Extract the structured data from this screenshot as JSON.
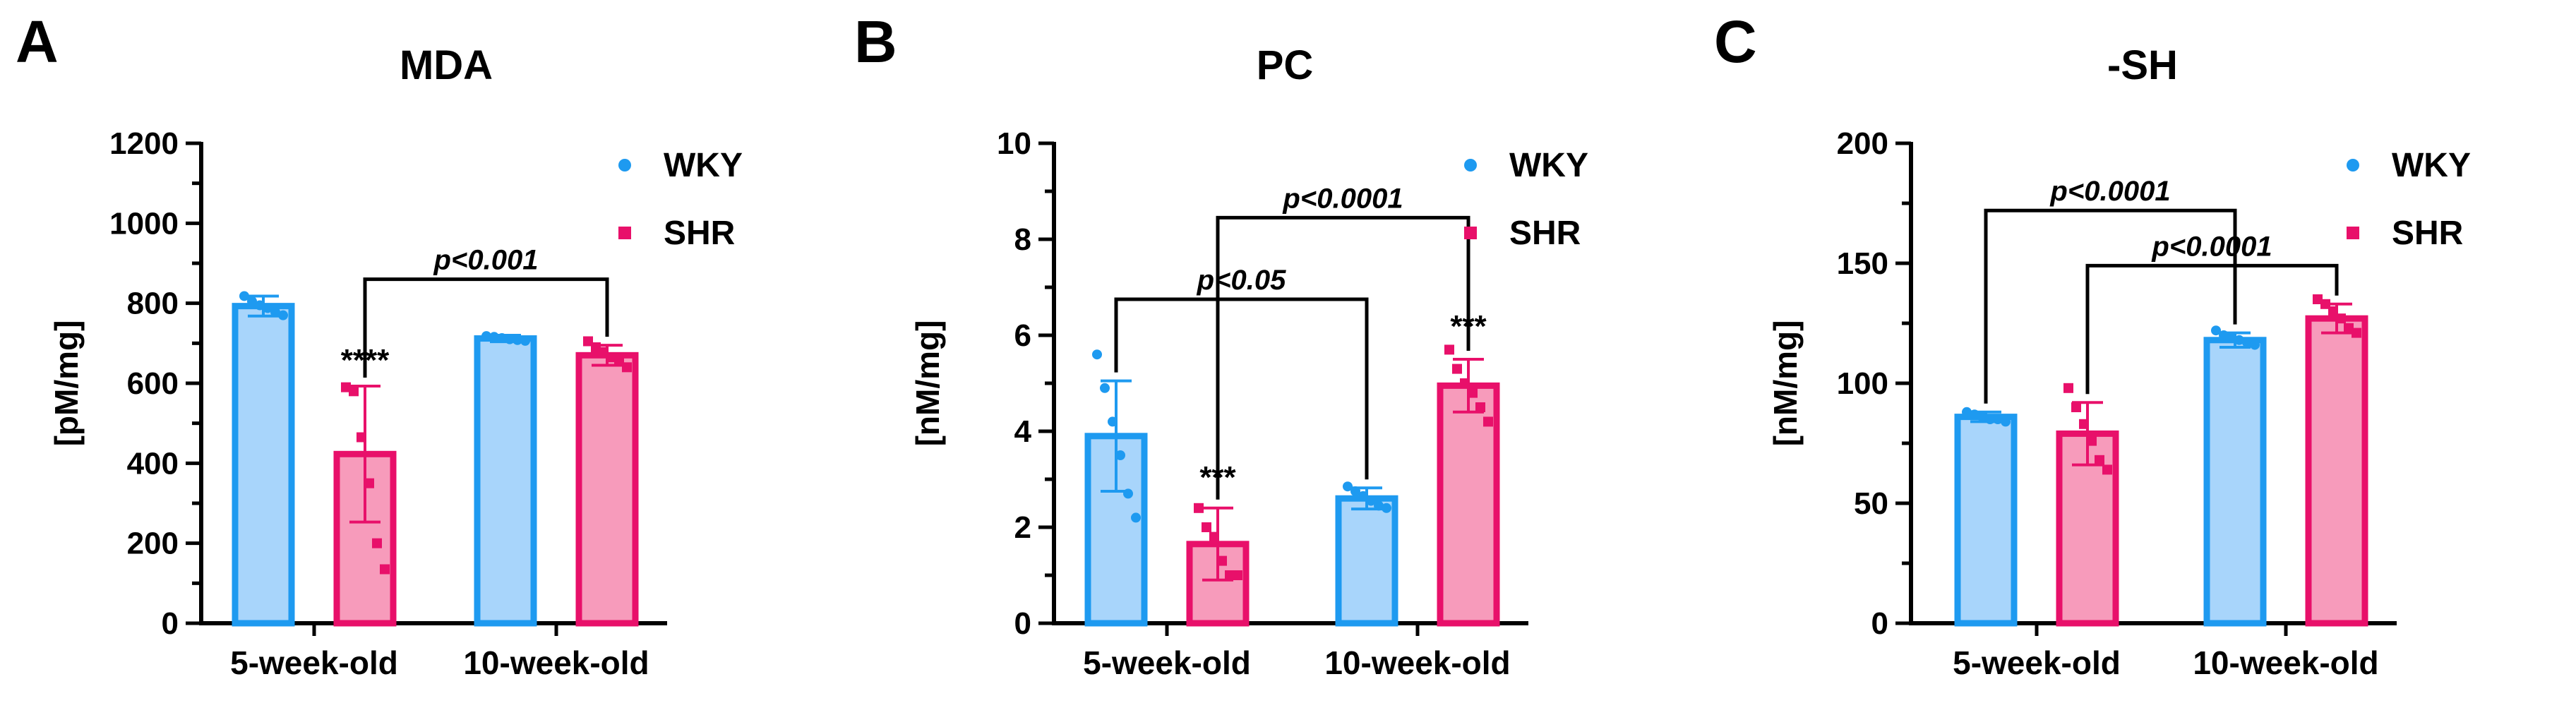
{
  "legend": [
    "WKY",
    "SHR"
  ],
  "colors": {
    "WKY": {
      "fill": "#a8d5fb",
      "stroke": "#1e9af0",
      "point": "#1e9af0"
    },
    "SHR": {
      "fill": "#f79bbb",
      "stroke": "#e8106a",
      "point": "#e8106a"
    }
  },
  "chart_data": [
    {
      "panel": "A",
      "type": "bar",
      "title": "MDA",
      "ylabel": "[pM/mg]",
      "ylim": [
        0,
        1200
      ],
      "yticks": [
        0,
        200,
        400,
        600,
        800,
        1000,
        1200
      ],
      "categories": [
        "5-week-old",
        "10-week-old"
      ],
      "legend_position": "top-right",
      "series": [
        {
          "name": "WKY",
          "values": [
            793,
            712
          ],
          "sd": [
            25,
            8
          ],
          "points": [
            [
              818,
              805,
              795,
              788,
              778,
              770
            ],
            [
              718,
              716,
              713,
              710,
              708,
              706
            ]
          ]
        },
        {
          "name": "SHR",
          "values": [
            423,
            670
          ],
          "sd": [
            170,
            25
          ],
          "points": [
            [
              590,
              580,
              465,
              350,
              200,
              135
            ],
            [
              705,
              690,
              678,
              665,
              655,
              640
            ]
          ]
        }
      ],
      "annotations": [
        {
          "text": "p<0.001",
          "from": [
            0,
            "SHR"
          ],
          "to": [
            1,
            "SHR"
          ],
          "level": 860
        }
      ],
      "stars": [
        {
          "text": "****",
          "category": 0,
          "series": "SHR",
          "y": 593
        }
      ]
    },
    {
      "panel": "B",
      "type": "bar",
      "title": "PC",
      "ylabel": "[nM/mg]",
      "ylim": [
        0,
        10
      ],
      "yticks": [
        0,
        2,
        4,
        6,
        8,
        10
      ],
      "categories": [
        "5-week-old",
        "10-week-old"
      ],
      "legend_position": "top-right",
      "series": [
        {
          "name": "WKY",
          "values": [
            3.9,
            2.6
          ],
          "sd": [
            1.15,
            0.22
          ],
          "points": [
            [
              5.6,
              4.9,
              4.2,
              3.5,
              2.7,
              2.2
            ],
            [
              2.85,
              2.75,
              2.65,
              2.55,
              2.45,
              2.4
            ]
          ]
        },
        {
          "name": "SHR",
          "values": [
            1.65,
            4.95
          ],
          "sd": [
            0.75,
            0.55
          ],
          "points": [
            [
              2.4,
              2.0,
              1.8,
              1.3,
              1.0,
              1.0
            ],
            [
              5.7,
              5.3,
              5.0,
              4.8,
              4.5,
              4.2
            ]
          ]
        }
      ],
      "annotations": [
        {
          "text": "p<0.05",
          "from": [
            0,
            "WKY"
          ],
          "to": [
            1,
            "WKY"
          ],
          "level": 6.75
        },
        {
          "text": "p<0.0001",
          "from": [
            0,
            "SHR"
          ],
          "to": [
            1,
            "SHR"
          ],
          "level": 8.45
        }
      ],
      "stars": [
        {
          "text": "***",
          "category": 0,
          "series": "SHR",
          "y": 2.5
        },
        {
          "text": "***",
          "category": 1,
          "series": "SHR",
          "y": 5.65
        }
      ]
    },
    {
      "panel": "C",
      "type": "bar",
      "title": "-SH",
      "ylabel": "[nM/mg]",
      "ylim": [
        0,
        200
      ],
      "yticks": [
        0,
        50,
        100,
        150,
        200
      ],
      "categories": [
        "5-week-old",
        "10-week-old"
      ],
      "legend_position": "top-right",
      "series": [
        {
          "name": "WKY",
          "values": [
            86,
            118
          ],
          "sd": [
            2,
            3
          ],
          "points": [
            [
              88,
              87,
              86,
              85,
              85,
              84
            ],
            [
              122,
              120,
              119,
              118,
              117,
              116
            ]
          ]
        },
        {
          "name": "SHR",
          "values": [
            79,
            127
          ],
          "sd": [
            13,
            6
          ],
          "points": [
            [
              98,
              90,
              83,
              76,
              68,
              64
            ],
            [
              135,
              133,
              130,
              127,
              123,
              121
            ]
          ]
        }
      ],
      "annotations": [
        {
          "text": "p<0.0001",
          "from": [
            0,
            "WKY"
          ],
          "to": [
            1,
            "WKY"
          ],
          "level": 172
        },
        {
          "text": "p<0.0001",
          "from": [
            0,
            "SHR"
          ],
          "to": [
            1,
            "SHR"
          ],
          "level": 149
        }
      ],
      "stars": []
    }
  ]
}
